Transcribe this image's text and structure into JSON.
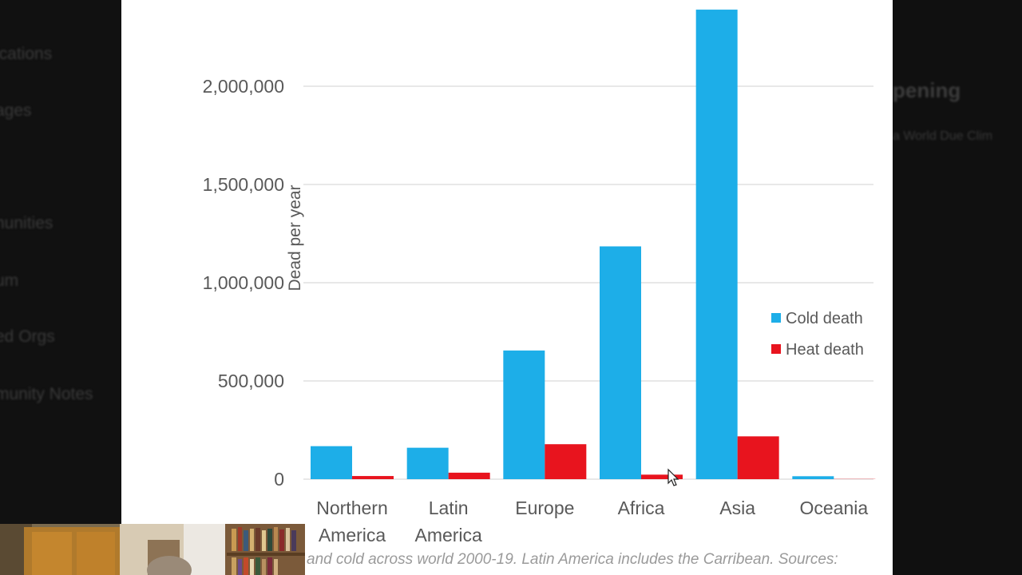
{
  "background": {
    "left_nav": [
      "ications",
      "ages",
      "nunities",
      "um",
      "ed Orgs",
      "munity Notes"
    ],
    "right_title": "pening",
    "right_sub": "a World Due Clim"
  },
  "chart_data": {
    "type": "bar",
    "categories": [
      [
        "Northern",
        "America"
      ],
      [
        "Latin",
        "America"
      ],
      [
        "Europe"
      ],
      [
        "Africa"
      ],
      [
        "Asia"
      ],
      [
        "Oceania"
      ]
    ],
    "series": [
      {
        "name": "Cold death",
        "color": "#1DAEE8",
        "values": [
          168000,
          160000,
          655000,
          1185000,
          2390000,
          15000
        ]
      },
      {
        "name": "Heat death",
        "color": "#E8141E",
        "values": [
          16000,
          33000,
          178000,
          23000,
          218000,
          1000
        ]
      }
    ],
    "ylabel": "Dead per year",
    "yticks": [
      "0",
      "500,000",
      "1,000,000",
      "1,500,000",
      "2,000,000"
    ],
    "ytick_values": [
      0,
      500000,
      1000000,
      1500000,
      2000000
    ],
    "ylim": [
      0,
      2400000
    ],
    "grid": true,
    "legend_position": "right"
  },
  "caption": "and cold across world 2000-19. Latin America includes the Carribean. Sources:",
  "colors": {
    "grid": "#d9d9d9",
    "tick_label": "#595959",
    "caption": "#9a9a9a"
  }
}
